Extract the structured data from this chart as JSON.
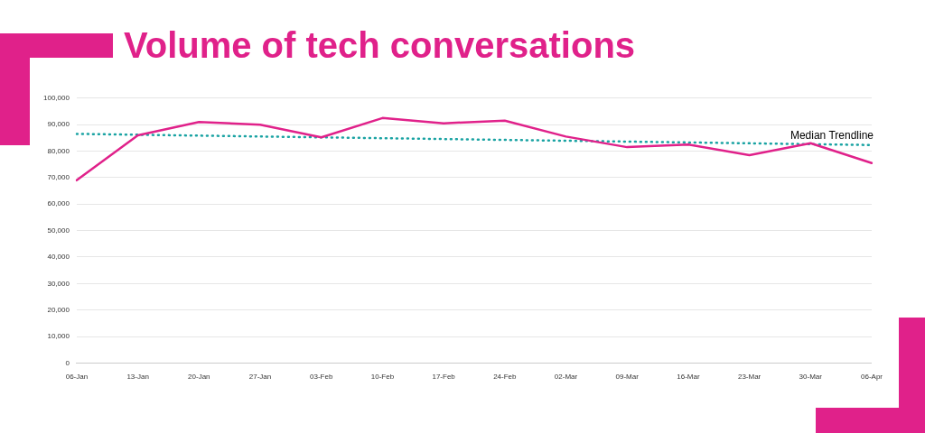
{
  "chart_data": {
    "type": "line",
    "title": "Volume of tech conversations",
    "categories": [
      "06-Jan",
      "13-Jan",
      "20-Jan",
      "27-Jan",
      "03-Feb",
      "10-Feb",
      "17-Feb",
      "24-Feb",
      "02-Mar",
      "09-Mar",
      "16-Mar",
      "23-Mar",
      "30-Mar",
      "06-Apr"
    ],
    "series": [
      {
        "color": "#e0218a",
        "values": [
          69000,
          86000,
          91000,
          90000,
          85200,
          92500,
          90500,
          91500,
          85500,
          81500,
          82500,
          78500,
          83000,
          75500
        ]
      },
      {
        "name": "Median Trendline",
        "line_style": "dotted",
        "color": "#1aa3a3",
        "x": [
          "06-Jan",
          "06-Apr"
        ],
        "values": [
          86500,
          82300
        ]
      }
    ],
    "ylim": [
      0,
      100000
    ],
    "yticks": [
      0,
      {
        "value": 10000,
        "label": "10,000"
      },
      {
        "value": 20000,
        "label": "20,000"
      },
      {
        "value": 30000,
        "label": "30,000"
      },
      {
        "value": 40000,
        "label": "40,000"
      },
      {
        "value": 50000,
        "label": "50,000"
      },
      {
        "value": 60000,
        "label": "60,000"
      },
      {
        "value": 70000,
        "label": "70,000"
      },
      {
        "value": 80000,
        "label": "80,000"
      },
      {
        "value": 90000,
        "label": "90,000"
      },
      {
        "value": 100000,
        "label": "100,000"
      }
    ],
    "grid": "y",
    "legend": false,
    "marker": "none",
    "line_style": "solid"
  }
}
